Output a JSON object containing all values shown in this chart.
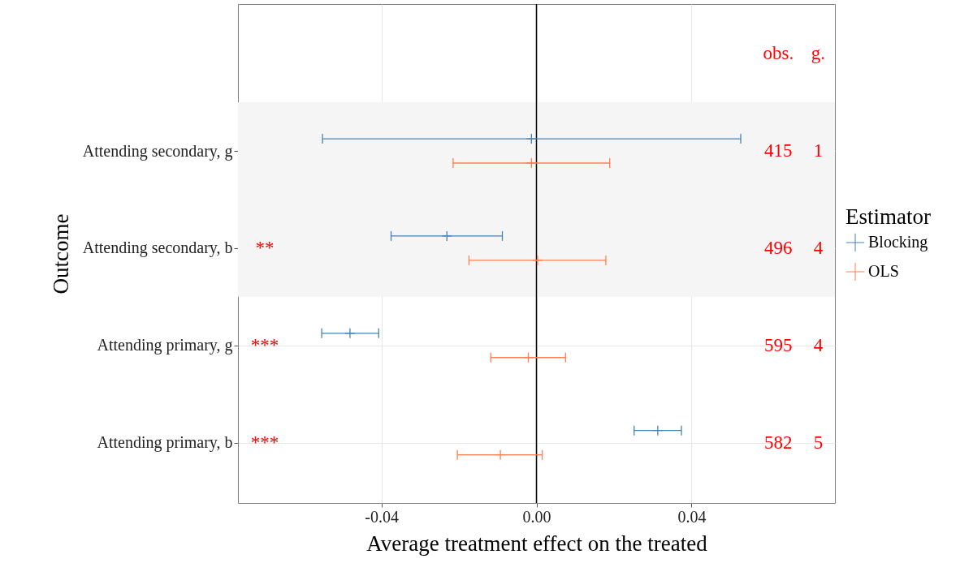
{
  "chart_data": {
    "type": "scatter",
    "orientation": "horizontal",
    "xlabel": "Average treatment effect on the treated",
    "ylabel": "Outcome",
    "legend_title": "Estimator",
    "legend": "right",
    "grid": true,
    "marker": "cross",
    "categories": [
      "Attending secondary, g",
      "Attending secondary, b",
      "Attending primary, g",
      "Attending primary, b"
    ],
    "series": [
      {
        "name": "Blocking",
        "color": "#4682b4",
        "values": [
          -0.0013,
          -0.0231,
          -0.0481,
          0.0313
        ],
        "errors": [
          [
            -0.0552,
            0.0527
          ],
          [
            -0.0375,
            -0.0088
          ],
          [
            -0.0554,
            -0.0407
          ],
          [
            0.0252,
            0.0374
          ]
        ]
      },
      {
        "name": "OLS",
        "color": "#ff7f50",
        "values": [
          -0.0013,
          0.0003,
          -0.0021,
          -0.0093
        ],
        "errors": [
          [
            -0.0215,
            0.0189
          ],
          [
            -0.0174,
            0.0179
          ],
          [
            -0.0118,
            0.0075
          ],
          [
            -0.0204,
            0.0015
          ]
        ]
      }
    ],
    "xlim": [
      -0.077,
      0.077
    ],
    "xticks": [
      -0.04,
      {
        "value": 0,
        "label": "0.00"
      },
      0.04
    ],
    "ref_lines": [
      {
        "axis": "x",
        "value": 0,
        "color": "#000000"
      }
    ],
    "bands": [
      {
        "axis": "y",
        "from": "Attending secondary, g",
        "to": "Attending secondary, b",
        "color": "#f5f5f5"
      }
    ],
    "annotations": [
      "obs.",
      "g.",
      "415",
      "1",
      "496",
      "4",
      "595",
      "4",
      "582",
      "5",
      "**",
      "***",
      "***"
    ]
  }
}
